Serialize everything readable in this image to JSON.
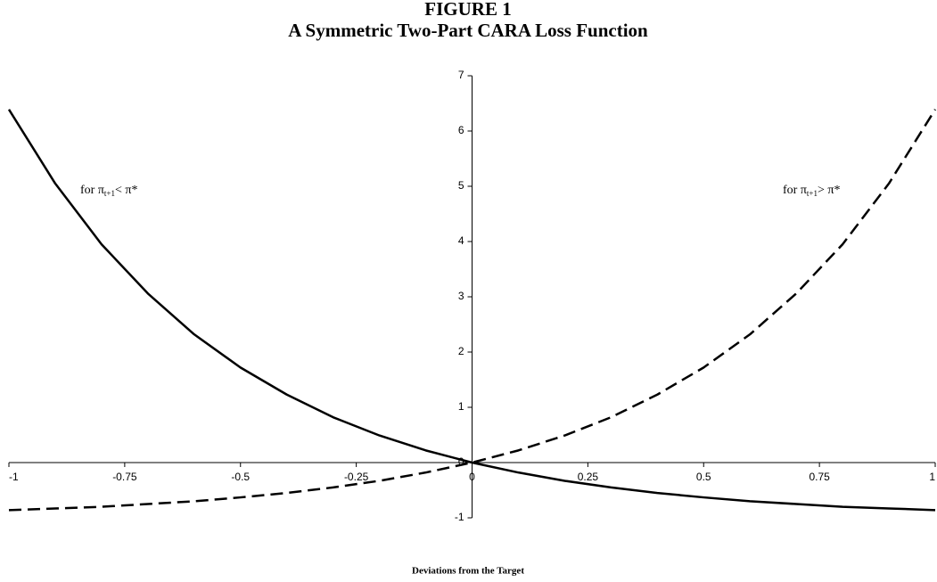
{
  "chart_data": {
    "type": "line",
    "title": "FIGURE 1",
    "subtitle": "A Symmetric Two-Part CARA Loss Function",
    "x_label": "Deviations from the Target",
    "x": [
      -1,
      -0.9,
      -0.8,
      -0.7,
      -0.6,
      -0.5,
      -0.4,
      -0.3,
      -0.2,
      -0.1,
      0,
      0.1,
      0.2,
      0.3,
      0.4,
      0.5,
      0.6,
      0.7,
      0.8,
      0.9,
      1
    ],
    "series": [
      {
        "color": "#000000",
        "linestyle": "solid",
        "values": [
          6.39,
          5.05,
          3.95,
          3.06,
          2.32,
          1.72,
          1.23,
          0.82,
          0.49,
          0.22,
          0,
          -0.18,
          -0.33,
          -0.45,
          -0.55,
          -0.63,
          -0.7,
          -0.75,
          -0.8,
          -0.83,
          -0.86
        ]
      },
      {
        "color": "#000000",
        "linestyle": "dashed",
        "values": [
          -0.86,
          -0.83,
          -0.8,
          -0.75,
          -0.7,
          -0.63,
          -0.55,
          -0.45,
          -0.33,
          -0.18,
          0,
          0.22,
          0.49,
          0.82,
          1.23,
          1.72,
          2.32,
          3.06,
          3.95,
          5.05,
          6.39
        ]
      }
    ],
    "annotations": [
      {
        "parts": [
          "for π",
          "t+1",
          "< π*"
        ]
      },
      {
        "parts": [
          "for π",
          "t+1",
          "> π*"
        ]
      }
    ],
    "xlim": [
      -1,
      1
    ],
    "ylim": [
      -1,
      7
    ],
    "xticks": [
      -1,
      -0.75,
      -0.5,
      -0.25,
      0,
      0.25,
      0.5,
      0.75,
      1
    ],
    "yticks": [
      -1,
      0,
      1,
      2,
      3,
      4,
      5,
      6,
      7
    ]
  }
}
